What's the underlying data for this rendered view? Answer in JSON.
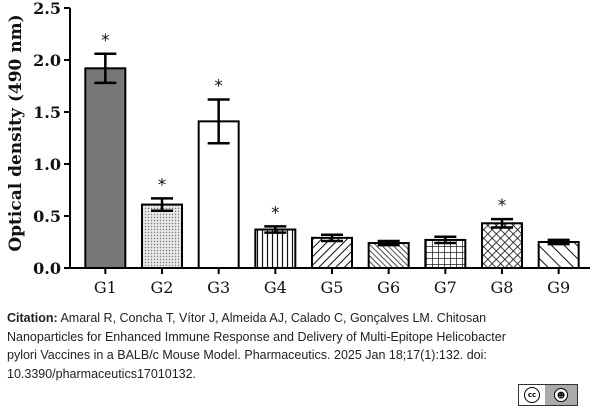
{
  "chart_data": {
    "type": "bar",
    "ylabel": "Optical density (490 nm)",
    "xlabel": "",
    "ylim": [
      0,
      2.5
    ],
    "yticks": [
      "0.0",
      "0.5",
      "1.0",
      "1.5",
      "2.0",
      "2.5"
    ],
    "categories": [
      "G1",
      "G2",
      "G3",
      "G4",
      "G5",
      "G6",
      "G7",
      "G8",
      "G9"
    ],
    "values": [
      1.92,
      0.61,
      1.41,
      0.37,
      0.29,
      0.24,
      0.27,
      0.43,
      0.25
    ],
    "errors": [
      0.14,
      0.06,
      0.21,
      0.03,
      0.03,
      0.02,
      0.03,
      0.04,
      0.02
    ],
    "significance": [
      "*",
      "*",
      "*",
      "*",
      "",
      "",
      "",
      "*",
      ""
    ],
    "fills": [
      "dark-grey",
      "light-dotted",
      "white",
      "vertical-lines",
      "diagonal-lines",
      "dense-diagonal-lines",
      "grid",
      "crosshatch",
      "wide-diagonal-lines"
    ]
  },
  "citation": {
    "label": "Citation:",
    "text": " Amaral R, Concha T, Vítor J, Almeida AJ, Calado C, Gonçalves LM. Chitosan Nanoparticles for Enhanced Immune Response and Delivery of Multi-Epitope Helicobacter pylori Vaccines in a BALB/c Mouse Model. Pharmaceutics. 2025 Jan 18;17(1):132. doi: 10.3390/pharmaceutics17010132."
  },
  "license": {
    "left": "cc",
    "right": "BY"
  }
}
